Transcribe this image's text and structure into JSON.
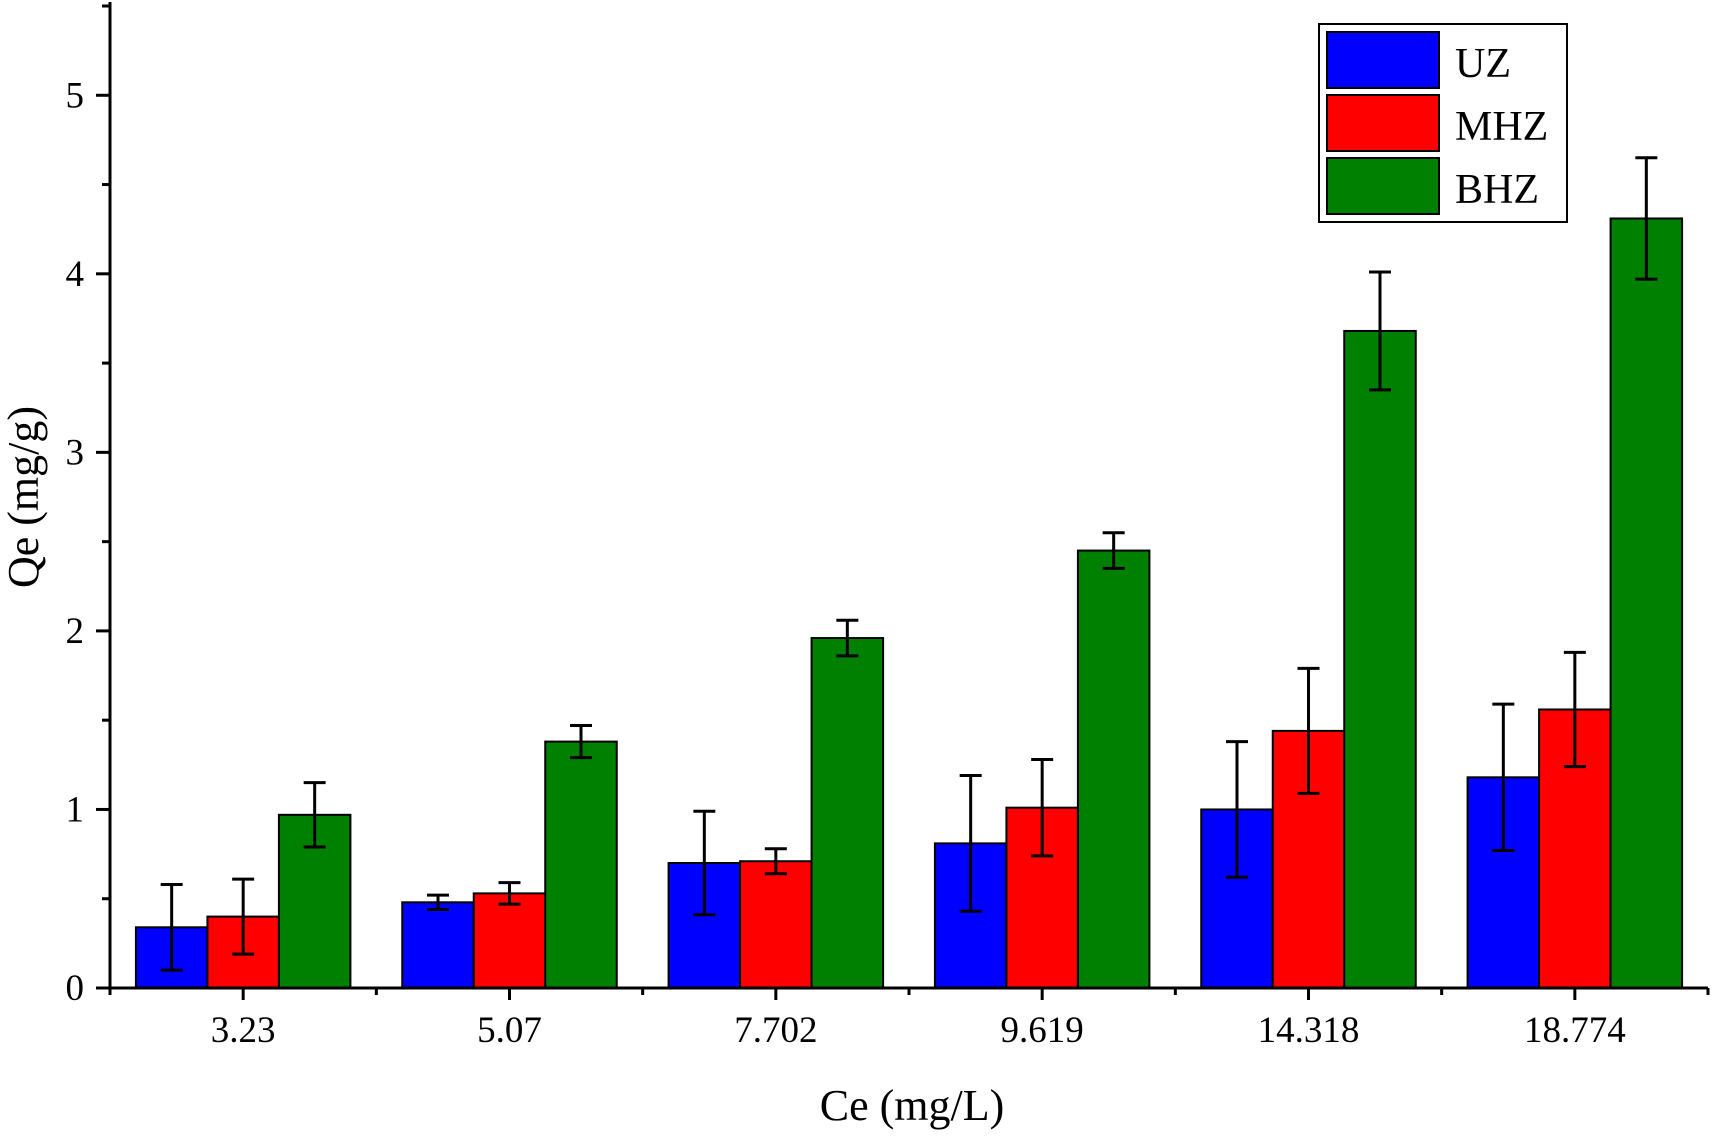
{
  "chart_data": {
    "type": "bar",
    "xlabel": "Ce (mg/L)",
    "ylabel": "Qe (mg/g)",
    "ylim": [
      0,
      5.5
    ],
    "yticks": [
      "0",
      "1",
      "2",
      "3",
      "4",
      "5"
    ],
    "categories": [
      "3.23",
      "5.07",
      "7.702",
      "9.619",
      "14.318",
      "18.774"
    ],
    "series": [
      {
        "name": "UZ",
        "color": "#0000ff",
        "values": [
          0.34,
          0.48,
          0.7,
          0.81,
          1.0,
          1.18
        ],
        "errors": [
          0.24,
          0.04,
          0.29,
          0.38,
          0.38,
          0.41
        ]
      },
      {
        "name": "MHZ",
        "color": "#ff0000",
        "values": [
          0.4,
          0.53,
          0.71,
          1.01,
          1.44,
          1.56
        ],
        "errors": [
          0.21,
          0.06,
          0.07,
          0.27,
          0.35,
          0.32
        ]
      },
      {
        "name": "BHZ",
        "color": "#008000",
        "values": [
          0.97,
          1.38,
          1.96,
          2.45,
          3.68,
          4.31
        ],
        "errors": [
          0.18,
          0.09,
          0.1,
          0.1,
          0.33,
          0.34
        ]
      }
    ],
    "legend": "top-right",
    "grid": false
  }
}
